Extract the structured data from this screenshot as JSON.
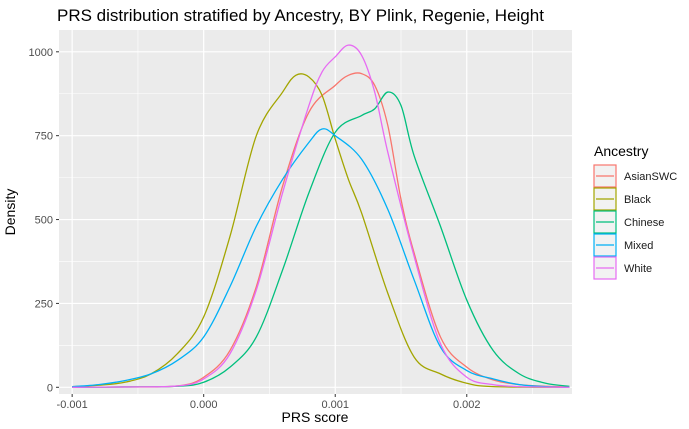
{
  "chart_data": {
    "type": "line",
    "title": "PRS distribution stratified by Ancestry, BY Plink, Regenie, Height",
    "xlabel": "PRS score",
    "ylabel": "Density",
    "xlim": [
      -0.0011,
      0.0028
    ],
    "ylim": [
      -20,
      1065
    ],
    "x_ticks": [
      -0.001,
      0.0,
      0.001,
      0.002
    ],
    "x_tick_labels": [
      "-0.001",
      "0.000",
      "0.001",
      "0.002"
    ],
    "y_ticks": [
      0,
      250,
      500,
      750,
      1000
    ],
    "y_tick_labels": [
      "0",
      "250",
      "500",
      "750",
      "1000"
    ],
    "grid": true,
    "legend": {
      "title": "Ancestry",
      "placement": "right"
    },
    "series": [
      {
        "name": "AsianSWC",
        "color": "#F8766D",
        "points": [
          [
            -0.001,
            0
          ],
          [
            -0.0006,
            1
          ],
          [
            -0.0002,
            4
          ],
          [
            0.0,
            30
          ],
          [
            0.0002,
            110
          ],
          [
            0.0004,
            300
          ],
          [
            0.0006,
            600
          ],
          [
            0.0008,
            820
          ],
          [
            0.001,
            900
          ],
          [
            0.0011,
            930
          ],
          [
            0.0012,
            935
          ],
          [
            0.0013,
            900
          ],
          [
            0.0014,
            780
          ],
          [
            0.0015,
            560
          ],
          [
            0.0016,
            400
          ],
          [
            0.0018,
            150
          ],
          [
            0.002,
            60
          ],
          [
            0.0022,
            22
          ],
          [
            0.0024,
            8
          ],
          [
            0.0026,
            3
          ],
          [
            0.00278,
            1
          ]
        ]
      },
      {
        "name": "Black",
        "color": "#A3A500",
        "points": [
          [
            -0.001,
            2
          ],
          [
            -0.0008,
            6
          ],
          [
            -0.0006,
            15
          ],
          [
            -0.0004,
            40
          ],
          [
            -0.0002,
            100
          ],
          [
            0.0,
            210
          ],
          [
            0.0002,
            450
          ],
          [
            0.0004,
            750
          ],
          [
            0.0006,
            880
          ],
          [
            0.0007,
            930
          ],
          [
            0.0008,
            925
          ],
          [
            0.0009,
            870
          ],
          [
            0.001,
            740
          ],
          [
            0.0011,
            620
          ],
          [
            0.0012,
            520
          ],
          [
            0.0014,
            280
          ],
          [
            0.0016,
            90
          ],
          [
            0.0018,
            40
          ],
          [
            0.002,
            12
          ],
          [
            0.0022,
            2
          ],
          [
            0.00278,
            0
          ]
        ]
      },
      {
        "name": "Chinese",
        "color": "#00BF7D",
        "points": [
          [
            -0.001,
            0
          ],
          [
            -0.0006,
            1
          ],
          [
            -0.0002,
            3
          ],
          [
            0.0,
            15
          ],
          [
            0.0002,
            60
          ],
          [
            0.0004,
            150
          ],
          [
            0.0006,
            350
          ],
          [
            0.0008,
            580
          ],
          [
            0.001,
            760
          ],
          [
            0.0012,
            810
          ],
          [
            0.0013,
            830
          ],
          [
            0.0014,
            880
          ],
          [
            0.0015,
            840
          ],
          [
            0.0016,
            690
          ],
          [
            0.0018,
            480
          ],
          [
            0.002,
            260
          ],
          [
            0.0022,
            110
          ],
          [
            0.0024,
            40
          ],
          [
            0.0026,
            12
          ],
          [
            0.00278,
            3
          ]
        ]
      },
      {
        "name": "Mixed",
        "color": "#00B0F6",
        "points": [
          [
            -0.001,
            2
          ],
          [
            -0.0008,
            8
          ],
          [
            -0.0006,
            20
          ],
          [
            -0.0004,
            40
          ],
          [
            -0.0002,
            80
          ],
          [
            0.0,
            150
          ],
          [
            0.0002,
            300
          ],
          [
            0.0004,
            480
          ],
          [
            0.0006,
            620
          ],
          [
            0.0008,
            730
          ],
          [
            0.0009,
            770
          ],
          [
            0.001,
            750
          ],
          [
            0.0012,
            680
          ],
          [
            0.0014,
            530
          ],
          [
            0.0016,
            320
          ],
          [
            0.0018,
            120
          ],
          [
            0.002,
            50
          ],
          [
            0.0022,
            25
          ],
          [
            0.0024,
            8
          ],
          [
            0.0026,
            2
          ],
          [
            0.00278,
            0
          ]
        ]
      },
      {
        "name": "White",
        "color": "#E76BF3",
        "points": [
          [
            -0.001,
            0
          ],
          [
            -0.0006,
            1
          ],
          [
            -0.0002,
            4
          ],
          [
            0.0,
            25
          ],
          [
            0.0002,
            100
          ],
          [
            0.0004,
            290
          ],
          [
            0.0006,
            580
          ],
          [
            0.0008,
            840
          ],
          [
            0.0009,
            940
          ],
          [
            0.001,
            985
          ],
          [
            0.0011,
            1020
          ],
          [
            0.0012,
            990
          ],
          [
            0.0013,
            880
          ],
          [
            0.0014,
            700
          ],
          [
            0.0016,
            390
          ],
          [
            0.0018,
            130
          ],
          [
            0.002,
            30
          ],
          [
            0.0022,
            8
          ],
          [
            0.0024,
            2
          ],
          [
            0.00278,
            0
          ]
        ]
      }
    ]
  }
}
